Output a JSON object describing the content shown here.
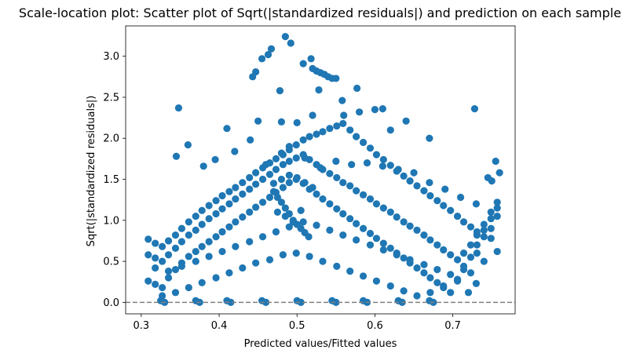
{
  "chart_data": {
    "type": "scatter",
    "title": "Scale-location plot: Scatter plot of Sqrt(|standardized residuals|) and prediction on each sample",
    "xlabel": "Predicted values/Fitted values",
    "ylabel": "Sqrt(|standardized residuals|)",
    "xlim": [
      0.28,
      0.78
    ],
    "ylim": [
      -0.14,
      3.37
    ],
    "xticks": [
      0.3,
      0.4,
      0.5,
      0.6,
      0.7
    ],
    "xtick_labels": [
      "0.3",
      "0.4",
      "0.5",
      "0.6",
      "0.7"
    ],
    "yticks": [
      0.0,
      0.5,
      1.0,
      1.5,
      2.0,
      2.5,
      3.0
    ],
    "ytick_labels": [
      "0.0",
      "0.5",
      "1.0",
      "1.5",
      "2.0",
      "2.5",
      "3.0"
    ],
    "grid": false,
    "legend": false,
    "marker_color": "#1f77b4",
    "reference_line": {
      "y": 0.0,
      "style": "dashed",
      "color": "#808080"
    },
    "series": [
      {
        "x": [
          0.348,
          0.443,
          0.447,
          0.455,
          0.463,
          0.467,
          0.478,
          0.485,
          0.492,
          0.508,
          0.518,
          0.52,
          0.525,
          0.53,
          0.535,
          0.54,
          0.545,
          0.55,
          0.528,
          0.558,
          0.577,
          0.728,
          0.41,
          0.45,
          0.48,
          0.52,
          0.56,
          0.6,
          0.64,
          0.67,
          0.58,
          0.5,
          0.61,
          0.62,
          0.73,
          0.309,
          0.318,
          0.327,
          0.335,
          0.344,
          0.352,
          0.361,
          0.37,
          0.378,
          0.387,
          0.396,
          0.404,
          0.413,
          0.421,
          0.43,
          0.439,
          0.447,
          0.456,
          0.465,
          0.473,
          0.482,
          0.49,
          0.499,
          0.508,
          0.516,
          0.525,
          0.533,
          0.542,
          0.551,
          0.559,
          0.568,
          0.576,
          0.585,
          0.594,
          0.602,
          0.611,
          0.62,
          0.628,
          0.637,
          0.645,
          0.654,
          0.663,
          0.671,
          0.68,
          0.688,
          0.697,
          0.706,
          0.714,
          0.723,
          0.731,
          0.74,
          0.749,
          0.757,
          0.309,
          0.318,
          0.327,
          0.335,
          0.344,
          0.352,
          0.361,
          0.37,
          0.378,
          0.387,
          0.396,
          0.404,
          0.413,
          0.421,
          0.43,
          0.439,
          0.447,
          0.456,
          0.465,
          0.473,
          0.482,
          0.49,
          0.499,
          0.508,
          0.516,
          0.525,
          0.533,
          0.542,
          0.551,
          0.559,
          0.568,
          0.576,
          0.585,
          0.594,
          0.602,
          0.611,
          0.62,
          0.628,
          0.637,
          0.645,
          0.654,
          0.663,
          0.671,
          0.68,
          0.688,
          0.697,
          0.706,
          0.714,
          0.723,
          0.731,
          0.74,
          0.749,
          0.757,
          0.309,
          0.318,
          0.327,
          0.335,
          0.344,
          0.352,
          0.361,
          0.37,
          0.378,
          0.387,
          0.396,
          0.404,
          0.413,
          0.421,
          0.43,
          0.439,
          0.447,
          0.456,
          0.465,
          0.473,
          0.482,
          0.49,
          0.499,
          0.508,
          0.516,
          0.525,
          0.533,
          0.542,
          0.551,
          0.559,
          0.568,
          0.576,
          0.585,
          0.594,
          0.602,
          0.611,
          0.62,
          0.628,
          0.637,
          0.645,
          0.654,
          0.663,
          0.671,
          0.68,
          0.688,
          0.697,
          0.706,
          0.714,
          0.723,
          0.731,
          0.74,
          0.749,
          0.757,
          0.318,
          0.335,
          0.352,
          0.37,
          0.387,
          0.404,
          0.421,
          0.439,
          0.456,
          0.473,
          0.49,
          0.508,
          0.525,
          0.542,
          0.559,
          0.576,
          0.594,
          0.611,
          0.628,
          0.645,
          0.663,
          0.68,
          0.697,
          0.714,
          0.731,
          0.749,
          0.327,
          0.344,
          0.361,
          0.378,
          0.396,
          0.413,
          0.43,
          0.447,
          0.465,
          0.482,
          0.499,
          0.516,
          0.533,
          0.551,
          0.568,
          0.585,
          0.602,
          0.62,
          0.637,
          0.654,
          0.671,
          0.688,
          0.706,
          0.723,
          0.74,
          0.757,
          0.325,
          0.33,
          0.37,
          0.375,
          0.41,
          0.415,
          0.455,
          0.46,
          0.5,
          0.505,
          0.545,
          0.55,
          0.585,
          0.59,
          0.63,
          0.635,
          0.67,
          0.675,
          0.72,
          0.345,
          0.36,
          0.38,
          0.395,
          0.42,
          0.44,
          0.46,
          0.48,
          0.49,
          0.51,
          0.53,
          0.55,
          0.57,
          0.59,
          0.61,
          0.63,
          0.65,
          0.67,
          0.69,
          0.71,
          0.73,
          0.75,
          0.76,
          0.755,
          0.745,
          0.47,
          0.475,
          0.48,
          0.485,
          0.49,
          0.495,
          0.5,
          0.505,
          0.51,
          0.515,
          0.47,
          0.48,
          0.49,
          0.5,
          0.51,
          0.52,
          0.475,
          0.485,
          0.495,
          0.505
        ],
        "y": [
          2.37,
          2.75,
          2.81,
          2.97,
          3.02,
          3.09,
          2.58,
          3.24,
          3.16,
          2.91,
          2.97,
          2.85,
          2.82,
          2.8,
          2.78,
          2.75,
          2.73,
          2.73,
          2.59,
          2.46,
          2.61,
          2.36,
          2.12,
          2.21,
          2.2,
          2.28,
          2.28,
          2.35,
          2.21,
          2.0,
          2.32,
          2.19,
          2.36,
          2.1,
          0.23,
          0.77,
          0.72,
          0.68,
          0.75,
          0.82,
          0.9,
          0.98,
          1.05,
          1.12,
          1.18,
          1.24,
          1.3,
          1.35,
          1.4,
          1.46,
          1.52,
          1.58,
          1.64,
          1.7,
          1.75,
          1.8,
          1.86,
          1.92,
          1.98,
          2.02,
          2.05,
          2.08,
          2.12,
          2.15,
          2.18,
          2.1,
          2.02,
          1.95,
          1.88,
          1.8,
          1.74,
          1.67,
          1.6,
          1.54,
          1.48,
          1.42,
          1.36,
          1.3,
          1.24,
          1.18,
          1.12,
          1.05,
          0.98,
          0.92,
          0.86,
          0.8,
          0.9,
          1.05,
          0.58,
          0.54,
          0.5,
          0.58,
          0.66,
          0.74,
          0.82,
          0.88,
          0.95,
          1.02,
          1.08,
          1.14,
          1.2,
          1.26,
          1.32,
          1.38,
          1.44,
          1.5,
          1.56,
          1.62,
          1.68,
          1.72,
          1.76,
          1.8,
          1.74,
          1.68,
          1.62,
          1.57,
          1.52,
          1.46,
          1.42,
          1.36,
          1.31,
          1.26,
          1.2,
          1.15,
          1.1,
          1.04,
          0.98,
          0.93,
          0.88,
          0.82,
          0.76,
          0.7,
          0.64,
          0.58,
          0.52,
          0.6,
          0.7,
          0.82,
          0.95,
          1.1,
          1.22,
          0.26,
          0.22,
          0.18,
          0.3,
          0.4,
          0.48,
          0.56,
          0.62,
          0.68,
          0.74,
          0.8,
          0.86,
          0.92,
          0.98,
          1.04,
          1.1,
          1.16,
          1.22,
          1.28,
          1.34,
          1.4,
          1.46,
          1.5,
          1.45,
          1.38,
          1.32,
          1.26,
          1.2,
          1.14,
          1.08,
          1.02,
          0.96,
          0.9,
          0.84,
          0.78,
          0.72,
          0.66,
          0.6,
          0.54,
          0.48,
          0.42,
          0.36,
          0.3,
          0.24,
          0.18,
          0.12,
          0.26,
          0.4,
          0.55,
          0.7,
          0.88,
          1.02,
          1.15,
          0.42,
          0.38,
          0.44,
          0.5,
          0.56,
          0.62,
          0.68,
          0.74,
          0.8,
          0.86,
          0.92,
          0.98,
          0.94,
          0.88,
          0.82,
          0.76,
          0.7,
          0.64,
          0.58,
          0.52,
          0.46,
          0.4,
          0.34,
          0.44,
          0.6,
          0.78,
          0.08,
          0.12,
          0.18,
          0.24,
          0.3,
          0.36,
          0.42,
          0.48,
          0.52,
          0.58,
          0.6,
          0.56,
          0.5,
          0.44,
          0.38,
          0.32,
          0.26,
          0.2,
          0.14,
          0.08,
          0.12,
          0.2,
          0.28,
          0.36,
          0.5,
          0.62,
          0.02,
          0.0,
          0.02,
          0.0,
          0.02,
          0.0,
          0.02,
          0.0,
          0.02,
          0.0,
          0.02,
          0.0,
          0.02,
          0.0,
          0.02,
          0.0,
          0.02,
          0.0,
          0.12,
          1.78,
          1.92,
          1.66,
          1.74,
          1.84,
          1.98,
          1.68,
          1.82,
          1.9,
          1.76,
          1.64,
          1.72,
          1.68,
          1.7,
          1.66,
          1.62,
          1.58,
          1.46,
          1.38,
          1.28,
          1.2,
          1.48,
          1.58,
          1.72,
          1.52,
          1.35,
          1.28,
          1.22,
          1.15,
          1.08,
          1.0,
          0.95,
          0.9,
          0.85,
          0.8,
          1.45,
          1.5,
          1.55,
          1.52,
          1.46,
          1.4,
          1.1,
          1.05,
          0.98,
          1.12
        ]
      }
    ]
  }
}
